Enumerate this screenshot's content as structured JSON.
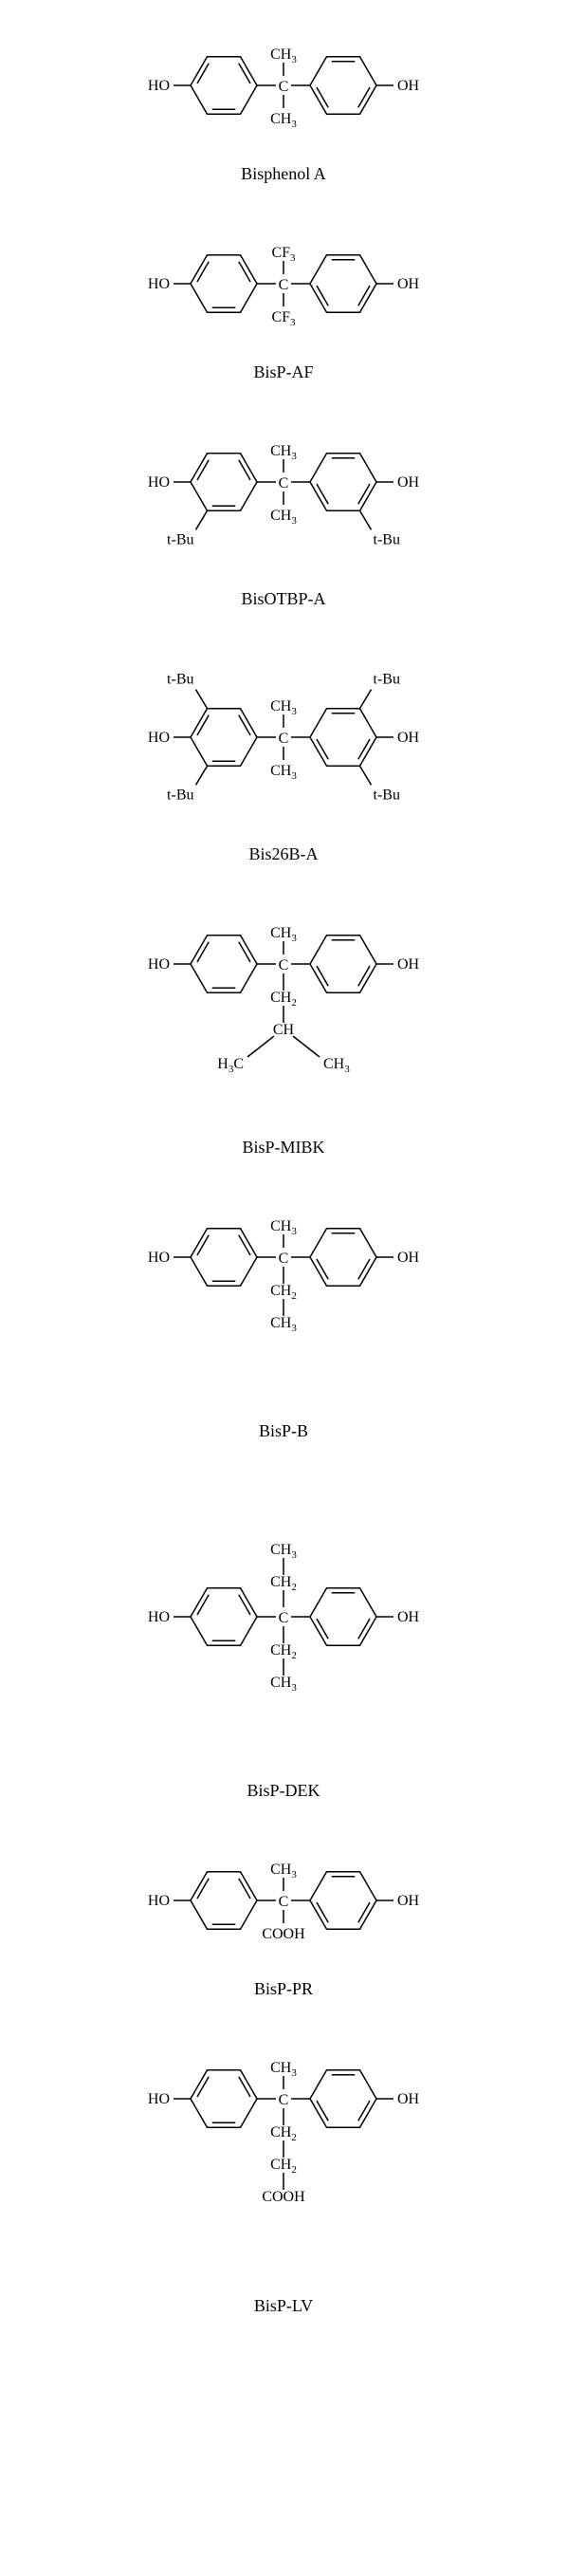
{
  "figure": {
    "background_color": "#ffffff",
    "stroke_color": "#000000",
    "stroke_width": 1.5,
    "font_family": "Times New Roman",
    "label_fontsize": 16,
    "sub_fontsize": 11,
    "caption_fontsize": 18,
    "structures": [
      {
        "name": "Bisphenol A",
        "left_oh": "HO",
        "right_oh": "OH",
        "center_atom": "C",
        "top_group": "CH",
        "top_sub": "3",
        "bottom_group": "CH",
        "bottom_sub": "3",
        "left_ring_subs": [],
        "right_ring_subs": [],
        "chain": []
      },
      {
        "name": "BisP-AF",
        "left_oh": "HO",
        "right_oh": "OH",
        "center_atom": "C",
        "top_group": "CF",
        "top_sub": "3",
        "bottom_group": "CF",
        "bottom_sub": "3",
        "left_ring_subs": [],
        "right_ring_subs": [],
        "chain": []
      },
      {
        "name": "BisOTBP-A",
        "left_oh": "HO",
        "right_oh": "OH",
        "center_atom": "C",
        "top_group": "CH",
        "top_sub": "3",
        "bottom_group": "CH",
        "bottom_sub": "3",
        "left_ring_subs": [
          {
            "pos": "bottom-ortho",
            "label": "t-Bu"
          }
        ],
        "right_ring_subs": [
          {
            "pos": "bottom-ortho",
            "label": "t-Bu"
          }
        ],
        "chain": []
      },
      {
        "name": "Bis26B-A",
        "left_oh": "HO",
        "right_oh": "OH",
        "center_atom": "C",
        "top_group": "CH",
        "top_sub": "3",
        "bottom_group": "CH",
        "bottom_sub": "3",
        "left_ring_subs": [
          {
            "pos": "top-ortho",
            "label": "t-Bu"
          },
          {
            "pos": "bottom-ortho",
            "label": "t-Bu"
          }
        ],
        "right_ring_subs": [
          {
            "pos": "top-ortho",
            "label": "t-Bu"
          },
          {
            "pos": "bottom-ortho",
            "label": "t-Bu"
          }
        ],
        "chain": []
      },
      {
        "name": "BisP-MIBK",
        "left_oh": "HO",
        "right_oh": "OH",
        "center_atom": "C",
        "top_group": "CH",
        "top_sub": "3",
        "bottom_group": "",
        "bottom_sub": "",
        "left_ring_subs": [],
        "right_ring_subs": [],
        "chain": [
          {
            "label": "CH",
            "sub": "2",
            "type": "node"
          },
          {
            "label": "CH",
            "sub": "",
            "type": "branch",
            "left_label": "H",
            "left_presub": "3",
            "left_post": "C",
            "right_label": "CH",
            "right_sub": "3"
          }
        ]
      },
      {
        "name": "BisP-B",
        "left_oh": "HO",
        "right_oh": "OH",
        "center_atom": "C",
        "top_group": "CH",
        "top_sub": "3",
        "bottom_group": "",
        "bottom_sub": "",
        "left_ring_subs": [],
        "right_ring_subs": [],
        "chain": [
          {
            "label": "CH",
            "sub": "2",
            "type": "node"
          },
          {
            "label": "CH",
            "sub": "3",
            "type": "terminal"
          }
        ]
      },
      {
        "name": "BisP-DEK",
        "left_oh": "HO",
        "right_oh": "OH",
        "center_atom": "C",
        "top_group": "",
        "top_sub": "",
        "bottom_group": "",
        "bottom_sub": "",
        "left_ring_subs": [],
        "right_ring_subs": [],
        "chain_top": [
          {
            "label": "CH",
            "sub": "2",
            "type": "node"
          },
          {
            "label": "CH",
            "sub": "3",
            "type": "terminal"
          }
        ],
        "chain": [
          {
            "label": "CH",
            "sub": "2",
            "type": "node"
          },
          {
            "label": "CH",
            "sub": "3",
            "type": "terminal"
          }
        ]
      },
      {
        "name": "BisP-PR",
        "left_oh": "HO",
        "right_oh": "OH",
        "center_atom": "C",
        "top_group": "CH",
        "top_sub": "3",
        "bottom_group": "COOH",
        "bottom_sub": "",
        "left_ring_subs": [],
        "right_ring_subs": [],
        "chain": []
      },
      {
        "name": "BisP-LV",
        "left_oh": "HO",
        "right_oh": "OH",
        "center_atom": "C",
        "top_group": "CH",
        "top_sub": "3",
        "bottom_group": "",
        "bottom_sub": "",
        "left_ring_subs": [],
        "right_ring_subs": [],
        "chain": [
          {
            "label": "CH",
            "sub": "2",
            "type": "node"
          },
          {
            "label": "CH",
            "sub": "2",
            "type": "node"
          },
          {
            "label": "COOH",
            "sub": "",
            "type": "terminal"
          }
        ]
      }
    ]
  }
}
